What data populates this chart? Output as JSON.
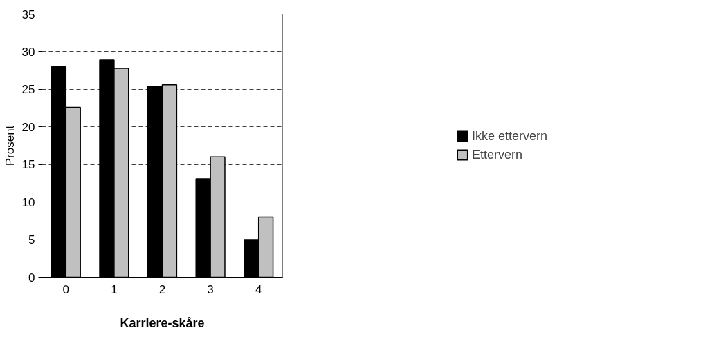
{
  "chart_data": {
    "type": "bar",
    "xlabel": "Karriere-skåre",
    "ylabel": "Prosent",
    "categories": [
      "0",
      "1",
      "2",
      "3",
      "4"
    ],
    "series": [
      {
        "name": "Ikke ettervern",
        "color": "#000000",
        "values": [
          28,
          28.9,
          25.4,
          13.1,
          5
        ]
      },
      {
        "name": "Ettervern",
        "color": "#c0c0c0",
        "values": [
          22.6,
          27.8,
          25.6,
          16,
          8
        ]
      }
    ],
    "ylim": [
      0,
      35
    ],
    "yticks": [
      0,
      5,
      10,
      15,
      20,
      25,
      30,
      35
    ],
    "grid": "y",
    "legend": "right"
  }
}
